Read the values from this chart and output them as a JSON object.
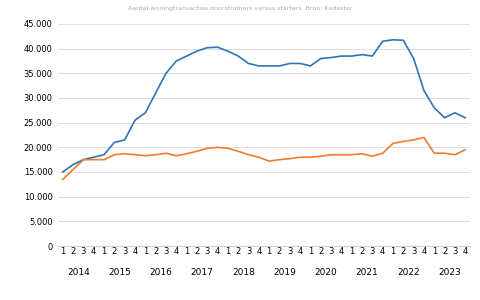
{
  "title": "Aantal woningtransacties doorstromers versus starters. Bron: Kadaster",
  "doorstromers": [
    15000,
    16500,
    17500,
    18000,
    18500,
    21000,
    21500,
    25500,
    27000,
    31000,
    35000,
    37500,
    38500,
    39500,
    40200,
    40300,
    39500,
    38500,
    37000,
    36500,
    36500,
    36500,
    37000,
    37000,
    36500,
    38000,
    38200,
    38500,
    38500,
    38800,
    38500,
    41500,
    41800,
    41700,
    38000,
    31500,
    28000,
    26000,
    27000,
    26000
  ],
  "starters": [
    13500,
    15500,
    17500,
    17500,
    17500,
    18500,
    18700,
    18500,
    18300,
    18500,
    18800,
    18300,
    18700,
    19200,
    19800,
    20000,
    19800,
    19200,
    18500,
    18000,
    17200,
    17500,
    17700,
    18000,
    18000,
    18200,
    18500,
    18500,
    18500,
    18700,
    18200,
    18800,
    20800,
    21200,
    21500,
    22000,
    18800,
    18800,
    18500,
    19500
  ],
  "x_labels_quarters": [
    "1",
    "2",
    "3",
    "4",
    "1",
    "2",
    "3",
    "4",
    "1",
    "2",
    "3",
    "4",
    "1",
    "2",
    "3",
    "4",
    "1",
    "2",
    "3",
    "4",
    "1",
    "2",
    "3",
    "4",
    "1",
    "2",
    "3",
    "4",
    "1",
    "2",
    "3",
    "4",
    "1",
    "2",
    "3",
    "4",
    "1",
    "2",
    "3",
    "4"
  ],
  "x_labels_years": [
    [
      0,
      "2014"
    ],
    [
      4,
      "2015"
    ],
    [
      8,
      "2016"
    ],
    [
      12,
      "2017"
    ],
    [
      16,
      "2018"
    ],
    [
      20,
      "2019"
    ],
    [
      24,
      "2020"
    ],
    [
      28,
      "2021"
    ],
    [
      32,
      "2022"
    ],
    [
      36,
      "2023"
    ]
  ],
  "ylim": [
    0,
    45000
  ],
  "yticks": [
    0,
    5000,
    10000,
    15000,
    20000,
    25000,
    30000,
    35000,
    40000,
    45000
  ],
  "color_doorstromers": "#2e75b6",
  "color_starters": "#ed7d31",
  "background_color": "#ffffff",
  "line_width": 1.2,
  "grid_color": "#d0d0d0",
  "title_color": "#aaaaaa",
  "title_fontsize": 4.5,
  "tick_fontsize": 6.0,
  "year_fontsize": 6.5
}
